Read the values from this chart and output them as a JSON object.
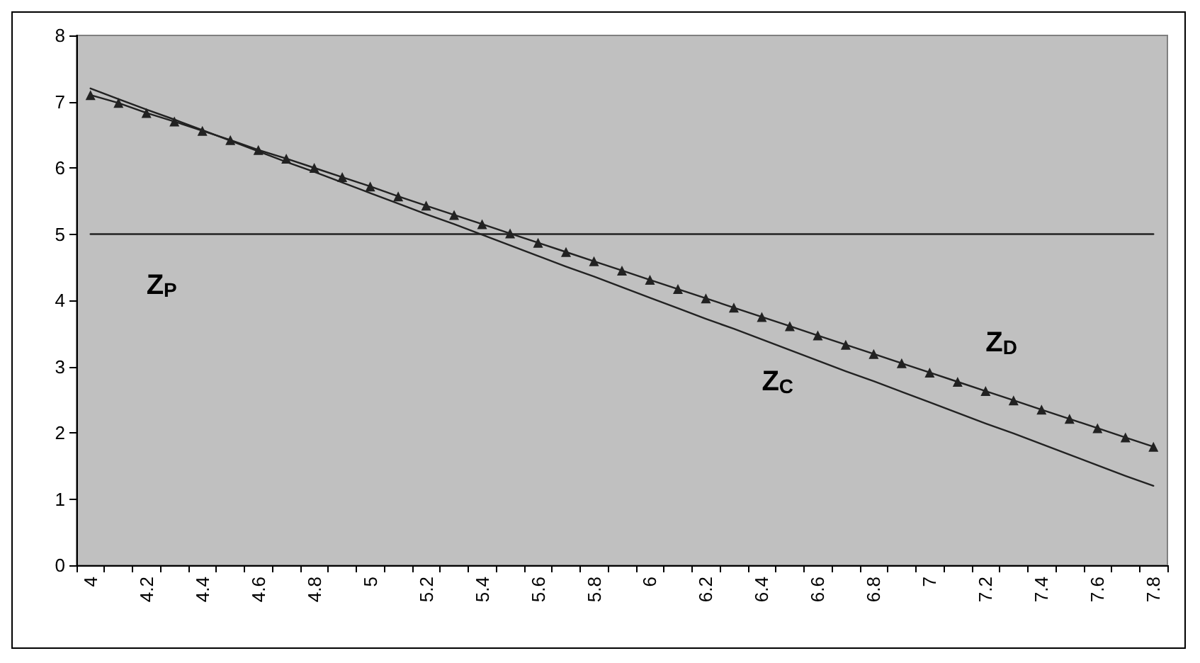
{
  "chart_data": {
    "type": "line",
    "categories": [
      "4",
      null,
      "4.2",
      null,
      "4.4",
      null,
      "4.6",
      null,
      "4.8",
      null,
      "5",
      null,
      "5.2",
      null,
      "5.4",
      null,
      "5.6",
      null,
      "5.8",
      null,
      "6",
      null,
      "6.2",
      null,
      "6.4",
      null,
      "6.6",
      null,
      "6.8",
      null,
      "7",
      null,
      "7.2",
      null,
      "7.4",
      null,
      "7.6",
      null,
      "7.8"
    ],
    "series": [
      {
        "name": "Z$_{P}$",
        "color": "#222222",
        "marker": "none",
        "values": [
          5,
          5,
          5,
          5,
          5,
          5,
          5,
          5,
          5,
          5,
          5,
          5,
          5,
          5,
          5,
          5,
          5,
          5,
          5,
          5,
          5,
          5,
          5,
          5,
          5,
          5,
          5,
          5,
          5,
          5,
          5,
          5,
          5,
          5,
          5,
          5,
          5,
          5,
          5
        ]
      },
      {
        "name": "Z$_{C}$",
        "color": "#222222",
        "marker": "none",
        "values": [
          7.2,
          7.04,
          6.88,
          6.73,
          6.57,
          6.41,
          6.25,
          6.09,
          5.94,
          5.78,
          5.62,
          5.46,
          5.3,
          5.15,
          4.99,
          4.83,
          4.67,
          4.51,
          4.36,
          4.2,
          4.04,
          3.88,
          3.72,
          3.57,
          3.41,
          3.25,
          3.09,
          2.93,
          2.78,
          2.62,
          2.46,
          2.3,
          2.14,
          1.99,
          1.83,
          1.67,
          1.51,
          1.35,
          1.2
        ]
      },
      {
        "name": "Z$_{D}$",
        "color": "#222222",
        "marker": "triangle",
        "values": [
          7.1,
          6.98,
          6.83,
          6.7,
          6.56,
          6.42,
          6.27,
          6.14,
          6.0,
          5.86,
          5.72,
          5.57,
          5.43,
          5.29,
          5.15,
          5.01,
          4.87,
          4.73,
          4.59,
          4.45,
          4.31,
          4.17,
          4.03,
          3.89,
          3.75,
          3.61,
          3.47,
          3.33,
          3.19,
          3.05,
          2.91,
          2.77,
          2.63,
          2.49,
          2.35,
          2.21,
          2.07,
          1.93,
          1.79
        ]
      }
    ],
    "ylim": [
      0,
      8
    ],
    "yticks": [
      0,
      1,
      2,
      3,
      4,
      5,
      6,
      7,
      8
    ],
    "grid": false
  }
}
